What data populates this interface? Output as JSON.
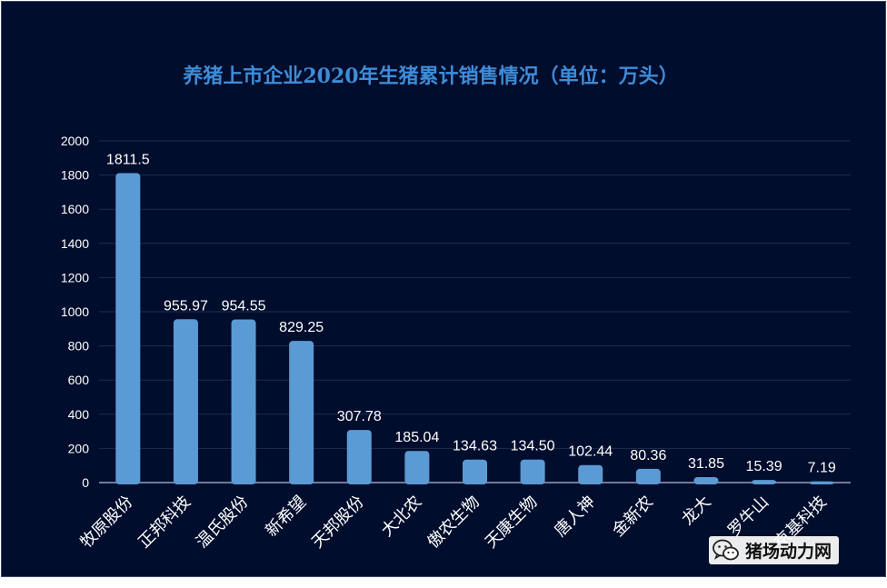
{
  "chart_data": {
    "type": "bar",
    "title": "养猪上市企业2020年生猪累计销售情况（单位：万头）",
    "categories": [
      "牧原股份",
      "正邦科技",
      "温氏股份",
      "新希望",
      "天邦股份",
      "大北农",
      "傲农生物",
      "天康生物",
      "唐人神",
      "金新农",
      "龙大",
      "罗牛山",
      "京基科技"
    ],
    "values": [
      1811.5,
      955.97,
      954.55,
      829.25,
      307.78,
      185.04,
      134.63,
      134.5,
      102.44,
      80.36,
      31.85,
      15.39,
      7.19
    ],
    "value_labels": [
      "1811.5",
      "955.97",
      "954.55",
      "829.25",
      "307.78",
      "185.04",
      "134.63",
      "134.50",
      "102.44",
      "80.36",
      "31.85",
      "15.39",
      "7.19"
    ],
    "ylim": [
      0,
      2000
    ],
    "yticks": [
      0,
      200,
      400,
      600,
      800,
      1000,
      1200,
      1400,
      1600,
      1800,
      2000
    ],
    "grid": true,
    "legend": "none",
    "bar_color": "#5b9bd5",
    "background": "#010d2c",
    "title_color": "#3e8cd8"
  },
  "watermark": {
    "icon": "wechat-icon",
    "text": "猪场动力网"
  }
}
